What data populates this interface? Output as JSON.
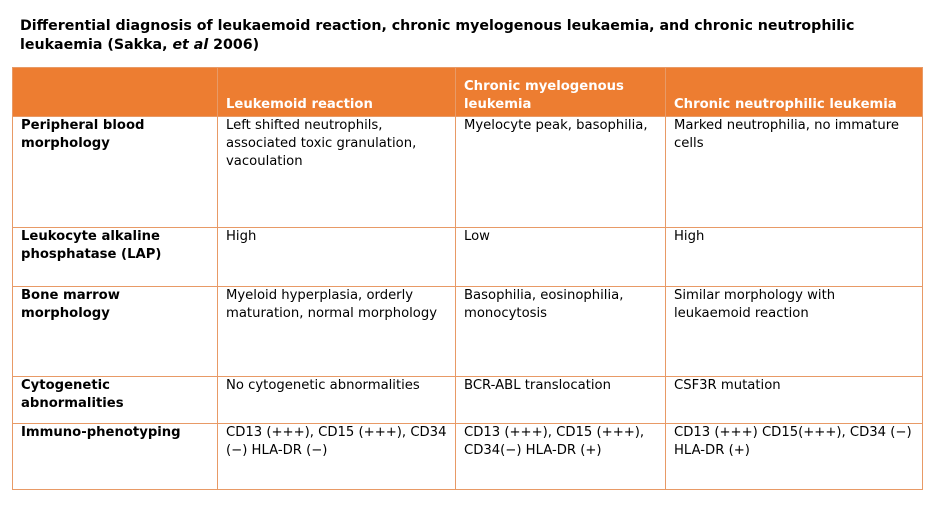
{
  "title": {
    "before": "Differential diagnosis of leukaemoid reaction, chronic myelogenous leukaemia, and chronic neutrophilic leukaemia (Sakka, ",
    "italic": "et al",
    "after": " 2006)"
  },
  "colors": {
    "header_bg": "#ed7d31",
    "border": "#e89a66"
  },
  "table": {
    "headers": [
      "",
      "Leukemoid reaction",
      "Chronic myelogenous leukemia",
      "Chronic neutrophilic leukemia"
    ],
    "rows": [
      {
        "label": "Peripheral blood morphology",
        "cells": [
          "Left shifted neutrophils, associated toxic granulation, vacoulation",
          "Myelocyte peak, basophilia,",
          "Marked neutrophilia, no immature cells"
        ]
      },
      {
        "label": "Leukocyte alkaline phosphatase (LAP)",
        "cells": [
          "High",
          "Low",
          "High"
        ]
      },
      {
        "label": "Bone marrow morphology",
        "cells": [
          "Myeloid hyperplasia, orderly maturation, normal morphology",
          "Basophilia, eosinophilia, monocytosis",
          "Similar morphology with leukaemoid reaction"
        ]
      },
      {
        "label": "Cytogenetic abnormalities",
        "cells": [
          "No cytogenetic abnormalities",
          "BCR-ABL translocation",
          "CSF3R mutation"
        ]
      },
      {
        "label": "Immuno-phenotyping",
        "cells": [
          "CD13 (+++), CD15 (+++), CD34 (−) HLA-DR (−)",
          "CD13 (+++), CD15 (+++), CD34(−) HLA-DR (+)",
          "CD13 (+++) CD15(+++), CD34 (−) HLA-DR (+)"
        ]
      }
    ]
  }
}
